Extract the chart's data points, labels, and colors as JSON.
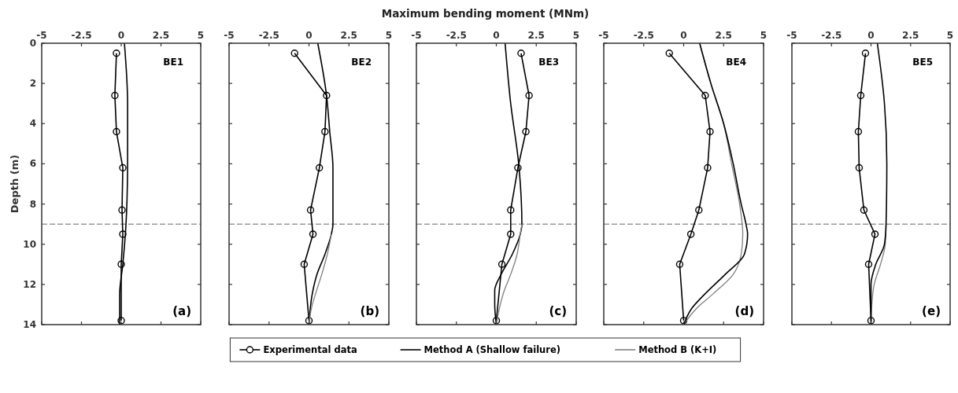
{
  "chart_data": [
    {
      "type": "line",
      "ylabel": "Depth (m)",
      "xlim": [
        -5,
        5
      ],
      "xticks": [
        -5,
        -2.5,
        0,
        2.5,
        5
      ],
      "ylim": [
        14,
        0
      ],
      "yticks": [
        0,
        2,
        4,
        6,
        8,
        10,
        12,
        14
      ],
      "grid": false,
      "annotations": [
        "BE1",
        "(a)"
      ],
      "ref_lines": [
        {
          "axis": "y",
          "value": 9,
          "color": "#666666",
          "line_style": "dashed"
        }
      ],
      "series": [
        {
          "color": "#000000",
          "marker": "circle",
          "x": [
            -0.3,
            -0.4,
            -0.3,
            0.1,
            0.05,
            0.1,
            0,
            0
          ],
          "values": [
            0.5,
            2.6,
            4.4,
            6.2,
            8.3,
            9.5,
            11.0,
            13.8
          ]
        },
        {
          "color": "#000000",
          "marker": "none",
          "x": [
            0.2,
            0.4,
            0.4,
            0.3,
            0.1,
            -0.1,
            -0.1
          ],
          "values": [
            0,
            3,
            6,
            9,
            11,
            12.5,
            14
          ]
        }
      ]
    },
    {
      "type": "line",
      "xlim": [
        -5,
        5
      ],
      "xticks": [
        -5,
        -2.5,
        0,
        2.5,
        5
      ],
      "ylim": [
        14,
        0
      ],
      "yticks": [
        0,
        2,
        4,
        6,
        8,
        10,
        12,
        14
      ],
      "tick_labels": "x",
      "grid": false,
      "legend": "bottom",
      "annotations": [
        "BE2",
        "(b)"
      ],
      "ref_lines": [
        {
          "axis": "y",
          "value": 9,
          "color": "#666666",
          "line_style": "dashed"
        }
      ],
      "series": [
        {
          "name": "Experimental data",
          "color": "#000000",
          "marker": "circle",
          "x": [
            -0.9,
            1.1,
            1.0,
            0.65,
            0.1,
            0.25,
            -0.3,
            0
          ],
          "values": [
            0.5,
            2.6,
            4.4,
            6.2,
            8.3,
            9.5,
            11.0,
            13.8
          ]
        },
        {
          "name": "Method A (Shallow failure)",
          "color": "#000000",
          "marker": "none",
          "x": [
            0.55,
            1.1,
            1.3,
            1.5,
            1.5,
            1.4,
            1.0,
            0.5,
            0.2,
            0
          ],
          "values": [
            0,
            2.6,
            4.4,
            6.2,
            9,
            9.5,
            10.5,
            11.5,
            12.5,
            14
          ]
        },
        {
          "name": "Method B (K+I)",
          "color": "#808080",
          "marker": "none",
          "x": [
            1.4,
            1.15,
            0.8,
            0.4,
            0.15,
            0
          ],
          "values": [
            9.5,
            10.5,
            11.5,
            12.5,
            13.2,
            14
          ]
        }
      ]
    },
    {
      "type": "line",
      "xlabel": "Maximum bending moment (MNm)",
      "xlim": [
        -5,
        5
      ],
      "xticks": [
        -5,
        -2.5,
        0,
        2.5,
        5
      ],
      "ylim": [
        14,
        0
      ],
      "yticks": [
        0,
        2,
        4,
        6,
        8,
        10,
        12,
        14
      ],
      "tick_labels": "x",
      "grid": false,
      "annotations": [
        "BE3",
        "(c)"
      ],
      "ref_lines": [
        {
          "axis": "y",
          "value": 9,
          "color": "#666666",
          "line_style": "dashed"
        }
      ],
      "series": [
        {
          "color": "#000000",
          "marker": "circle",
          "x": [
            1.55,
            2.05,
            1.85,
            1.35,
            0.9,
            0.9,
            0.35,
            0
          ],
          "values": [
            0.5,
            2.6,
            4.4,
            6.2,
            8.3,
            9.5,
            11.0,
            13.8
          ]
        },
        {
          "color": "#000000",
          "marker": "none",
          "x": [
            0.55,
            0.9,
            1.4,
            1.6,
            1.5,
            1.0,
            0.3,
            -0.1,
            -0.1,
            0
          ],
          "values": [
            0,
            3,
            6,
            9,
            9.5,
            10.5,
            11.5,
            12.3,
            13,
            14
          ]
        },
        {
          "color": "#808080",
          "marker": "none",
          "x": [
            1.6,
            1.5,
            1.3,
            0.9,
            0.5,
            0.25,
            0
          ],
          "values": [
            9,
            9.5,
            10.5,
            11.5,
            12.3,
            13,
            14
          ]
        }
      ]
    },
    {
      "type": "line",
      "xlim": [
        -5,
        5
      ],
      "xticks": [
        -5,
        -2.5,
        0,
        2.5,
        5
      ],
      "ylim": [
        14,
        0
      ],
      "yticks": [
        0,
        2,
        4,
        6,
        8,
        10,
        12,
        14
      ],
      "tick_labels": "x",
      "grid": false,
      "annotations": [
        "BE4",
        "(d)"
      ],
      "ref_lines": [
        {
          "axis": "y",
          "value": 9,
          "color": "#666666",
          "line_style": "dashed"
        }
      ],
      "series": [
        {
          "color": "#000000",
          "marker": "circle",
          "x": [
            -0.9,
            1.35,
            1.65,
            1.5,
            0.95,
            0.45,
            -0.25,
            0
          ],
          "values": [
            0.5,
            2.6,
            4.4,
            6.2,
            8.3,
            9.5,
            11.0,
            13.8
          ]
        },
        {
          "color": "#808080",
          "marker": "none",
          "x": [
            1.0,
            1.7,
            2.5,
            3.0,
            3.5,
            3.7,
            3.6,
            3.1,
            1.8,
            0.8,
            0
          ],
          "values": [
            0,
            2,
            4,
            6,
            8,
            9.5,
            10.5,
            11.5,
            12.5,
            13.2,
            14
          ]
        },
        {
          "color": "#000000",
          "marker": "none",
          "x": [
            1.0,
            1.7,
            2.5,
            3.1,
            3.6,
            3.9,
            4.0,
            3.8,
            2.6,
            1.3,
            0.5,
            0
          ],
          "values": [
            0,
            2,
            4,
            6,
            8,
            9,
            9.5,
            10.5,
            11.5,
            12.5,
            13.2,
            14
          ]
        }
      ]
    },
    {
      "type": "line",
      "xlim": [
        -5,
        5
      ],
      "xticks": [
        -5,
        -2.5,
        0,
        2.5,
        5
      ],
      "ylim": [
        14,
        0
      ],
      "yticks": [
        0,
        2,
        4,
        6,
        8,
        10,
        12,
        14
      ],
      "tick_labels": "x",
      "grid": false,
      "annotations": [
        "BE5",
        "(e)"
      ],
      "ref_lines": [
        {
          "axis": "y",
          "value": 9,
          "color": "#666666",
          "line_style": "dashed"
        }
      ],
      "series": [
        {
          "color": "#000000",
          "marker": "circle",
          "x": [
            -0.35,
            -0.65,
            -0.8,
            -0.75,
            -0.45,
            0.25,
            -0.15,
            0
          ],
          "values": [
            0.5,
            2.6,
            4.4,
            6.2,
            8.3,
            9.5,
            11.0,
            13.8
          ]
        },
        {
          "color": "#808080",
          "marker": "none",
          "x": [
            0.95,
            0.9,
            0.6,
            0.2,
            0.05,
            0
          ],
          "values": [
            9,
            10,
            11,
            12,
            13,
            14
          ]
        },
        {
          "color": "#000000",
          "marker": "none",
          "x": [
            0.4,
            0.85,
            1.0,
            0.95,
            0.85,
            0.3,
            0,
            0
          ],
          "values": [
            0,
            3,
            6,
            9,
            10,
            11,
            12,
            14
          ]
        }
      ]
    }
  ]
}
